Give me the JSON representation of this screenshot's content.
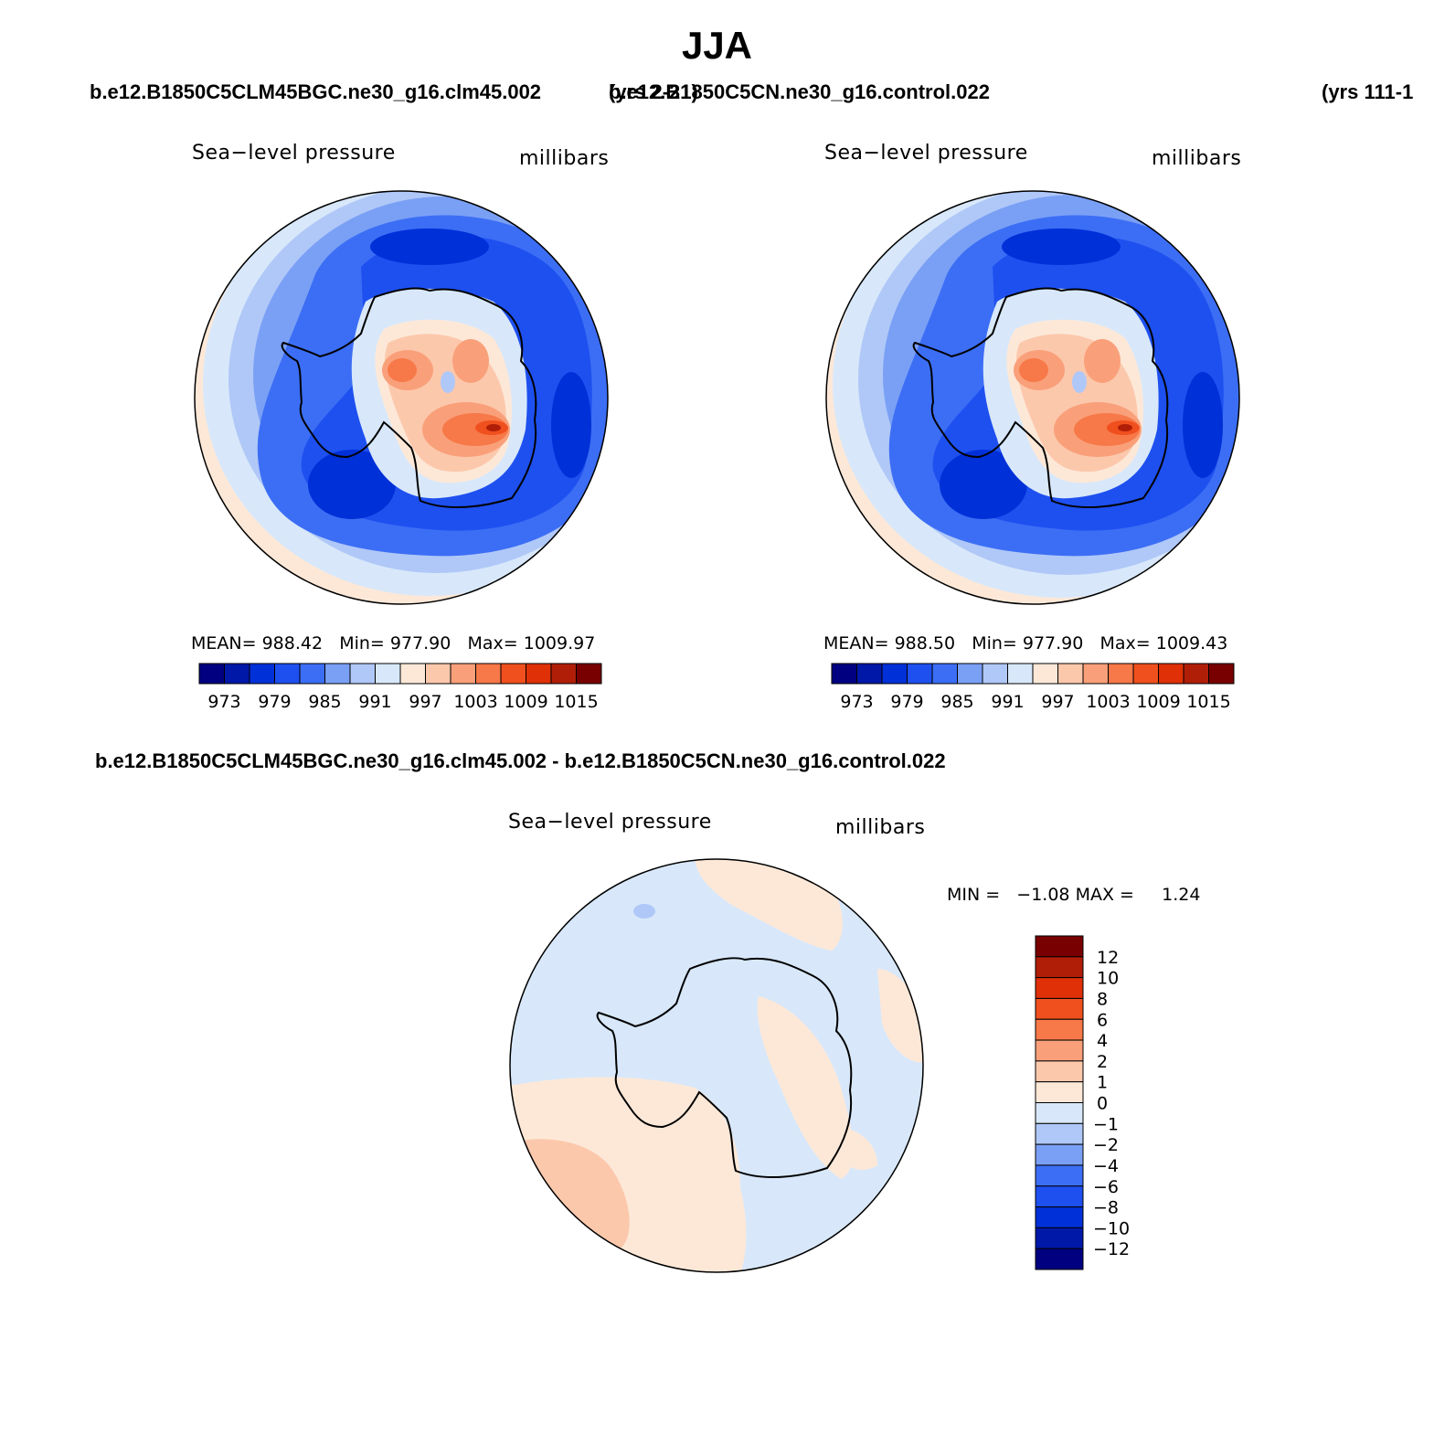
{
  "season": "JJA",
  "header": {
    "left_case": "b.e12.B1850C5CLM45BGC.ne30_g16.clm45.002",
    "left_years": "(yrs 2-21)",
    "right_case": "b.e12.B1850C5CN.ne30_g16.control.022",
    "right_years": "(yrs 111-1"
  },
  "diff_title": "b.e12.B1850C5CLM45BGC.ne30_g16.clm45.002 - b.e12.B1850C5CN.ne30_g16.control.022",
  "panels": {
    "left": {
      "variable": "Sea−level pressure",
      "units": "millibars",
      "mean_label": "MEAN=",
      "mean": "988.42",
      "min_label": "Min=",
      "min": "977.90",
      "max_label": "Max=",
      "max": "1009.97"
    },
    "right": {
      "variable": "Sea−level pressure",
      "units": "millibars",
      "mean_label": "MEAN=",
      "mean": "988.50",
      "min_label": "Min=",
      "min": "977.90",
      "max_label": "Max=",
      "max": "1009.43"
    },
    "diff": {
      "variable": "Sea−level pressure",
      "units": "millibars",
      "min_label": "MIN =",
      "min": "−1.08",
      "max_label": "MAX =",
      "max": "1.24"
    }
  },
  "chart_data": [
    {
      "type": "heatmap",
      "projection": "south polar stereographic",
      "title": "Sea−level pressure",
      "units": "millibars",
      "mean": 988.42,
      "min": 977.9,
      "max": 1009.97,
      "colorbar_levels": [
        973,
        976,
        979,
        982,
        985,
        988,
        991,
        994,
        997,
        1000,
        1003,
        1006,
        1009,
        1012,
        1015
      ],
      "colorbar_tick_labels": [
        "973",
        "979",
        "985",
        "991",
        "997",
        "1003",
        "1009",
        "1015"
      ]
    },
    {
      "type": "heatmap",
      "projection": "south polar stereographic",
      "title": "Sea−level pressure",
      "units": "millibars",
      "mean": 988.5,
      "min": 977.9,
      "max": 1009.43,
      "colorbar_levels": [
        973,
        976,
        979,
        982,
        985,
        988,
        991,
        994,
        997,
        1000,
        1003,
        1006,
        1009,
        1012,
        1015
      ],
      "colorbar_tick_labels": [
        "973",
        "979",
        "985",
        "991",
        "997",
        "1003",
        "1009",
        "1015"
      ]
    },
    {
      "type": "heatmap",
      "projection": "south polar stereographic",
      "title": "Sea−level pressure",
      "units": "millibars",
      "min": -1.08,
      "max": 1.24,
      "colorbar_levels": [
        -12,
        -10,
        -8,
        -6,
        -4,
        -2,
        -1,
        0,
        1,
        2,
        4,
        6,
        8,
        10,
        12
      ],
      "colorbar_tick_labels": [
        "12",
        "10",
        "8",
        "6",
        "4",
        "2",
        "1",
        "0",
        "−1",
        "−2",
        "−4",
        "−6",
        "−8",
        "−10",
        "−12"
      ]
    }
  ],
  "palette": [
    "#000080",
    "#0018a8",
    "#0030d8",
    "#1e50f0",
    "#3c6ef5",
    "#7aa0f5",
    "#b0c8f8",
    "#d8e8fa",
    "#fde8d8",
    "#fcc8ac",
    "#f9a07a",
    "#f77848",
    "#f0501e",
    "#e03008",
    "#b01e08",
    "#780000"
  ]
}
